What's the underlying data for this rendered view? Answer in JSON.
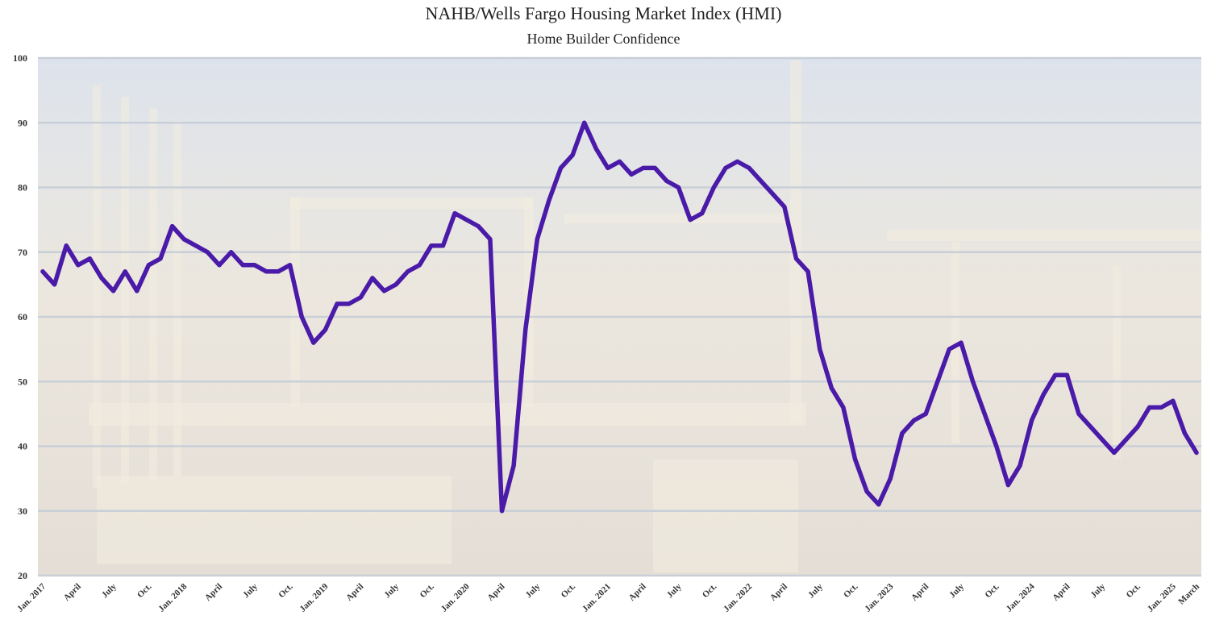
{
  "chart_data": {
    "type": "line",
    "title": "NAHB/Wells Fargo Housing Market Index (HMI)",
    "subtitle": "Home Builder Confidence",
    "xlabel": "",
    "ylabel": "",
    "ylim": [
      20,
      100
    ],
    "yticks": [
      20,
      30,
      40,
      50,
      60,
      70,
      80,
      90,
      100
    ],
    "grid": true,
    "colors": {
      "line": "#4a1aa8",
      "grid": "#c9cfd8",
      "plot_bg": "#e9e6e0"
    },
    "x_tick_labels": [
      "Jan. 2017",
      "April",
      "July",
      "Oct.",
      "Jan. 2018",
      "April",
      "July",
      "Oct.",
      "Jan. 2019",
      "April",
      "July",
      "Oct.",
      "Jan. 2020",
      "April",
      "July",
      "Oct.",
      "Jan. 2021",
      "April",
      "July",
      "Oct.",
      "Jan. 2022",
      "April",
      "July",
      "Oct.",
      "Jan. 2023",
      "April",
      "July",
      "Oct.",
      "Jan. 2024",
      "April",
      "July",
      "Oct.",
      "Jan. 2025",
      "March"
    ],
    "x": [
      "2017-01",
      "2017-02",
      "2017-03",
      "2017-04",
      "2017-05",
      "2017-06",
      "2017-07",
      "2017-08",
      "2017-09",
      "2017-10",
      "2017-11",
      "2017-12",
      "2018-01",
      "2018-02",
      "2018-03",
      "2018-04",
      "2018-05",
      "2018-06",
      "2018-07",
      "2018-08",
      "2018-09",
      "2018-10",
      "2018-11",
      "2018-12",
      "2019-01",
      "2019-02",
      "2019-03",
      "2019-04",
      "2019-05",
      "2019-06",
      "2019-07",
      "2019-08",
      "2019-09",
      "2019-10",
      "2019-11",
      "2019-12",
      "2020-01",
      "2020-02",
      "2020-03",
      "2020-04",
      "2020-05",
      "2020-06",
      "2020-07",
      "2020-08",
      "2020-09",
      "2020-10",
      "2020-11",
      "2020-12",
      "2021-01",
      "2021-02",
      "2021-03",
      "2021-04",
      "2021-05",
      "2021-06",
      "2021-07",
      "2021-08",
      "2021-09",
      "2021-10",
      "2021-11",
      "2021-12",
      "2022-01",
      "2022-02",
      "2022-03",
      "2022-04",
      "2022-05",
      "2022-06",
      "2022-07",
      "2022-08",
      "2022-09",
      "2022-10",
      "2022-11",
      "2022-12",
      "2023-01",
      "2023-02",
      "2023-03",
      "2023-04",
      "2023-05",
      "2023-06",
      "2023-07",
      "2023-08",
      "2023-09",
      "2023-10",
      "2023-11",
      "2023-12",
      "2024-01",
      "2024-02",
      "2024-03",
      "2024-04",
      "2024-05",
      "2024-06",
      "2024-07",
      "2024-08",
      "2024-09",
      "2024-10",
      "2024-11",
      "2024-12",
      "2025-01",
      "2025-02",
      "2025-03"
    ],
    "series": [
      {
        "values": [
          67,
          65,
          71,
          68,
          69,
          66,
          64,
          67,
          64,
          68,
          69,
          74,
          72,
          71,
          70,
          68,
          70,
          68,
          68,
          67,
          67,
          68,
          60,
          56,
          58,
          62,
          62,
          63,
          66,
          64,
          65,
          67,
          68,
          71,
          71,
          76,
          75,
          74,
          72,
          30,
          37,
          58,
          72,
          78,
          83,
          85,
          90,
          86,
          83,
          84,
          82,
          83,
          83,
          81,
          80,
          75,
          76,
          80,
          83,
          84,
          83,
          81,
          79,
          77,
          69,
          67,
          55,
          49,
          46,
          38,
          33,
          31,
          35,
          42,
          44,
          45,
          50,
          55,
          56,
          50,
          45,
          40,
          34,
          37,
          44,
          48,
          51,
          51,
          45,
          43,
          41,
          39,
          41,
          43,
          46,
          46,
          47,
          42,
          39
        ]
      }
    ]
  }
}
